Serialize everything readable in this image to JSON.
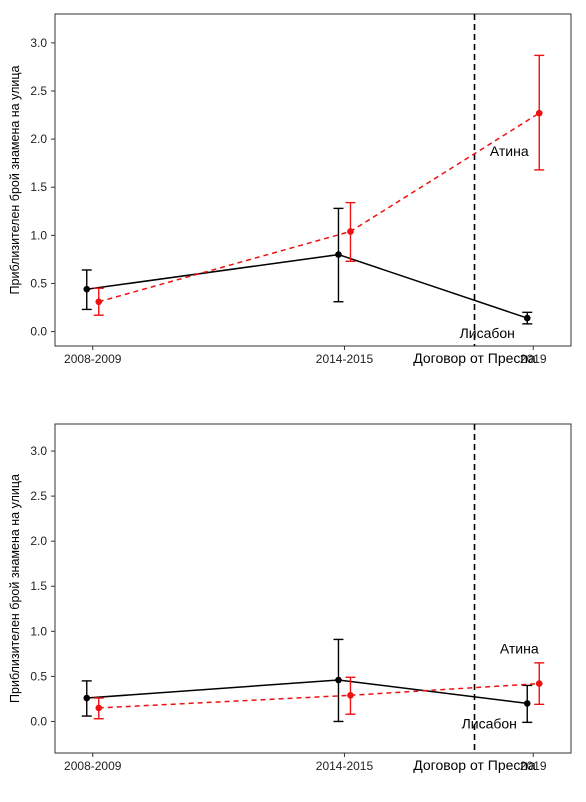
{
  "chart_data": [
    {
      "type": "line",
      "categories": [
        "2008-2009",
        "2014-2015",
        "2019"
      ],
      "x": [
        2008.5,
        2014.5,
        2019
      ],
      "ylabel": "Приблизителен брой знамена на улица",
      "xlabel": "",
      "ylim": [
        -0.15,
        3.3
      ],
      "xlim": [
        2007.6,
        2019.9
      ],
      "yticks": [
        "0.0",
        "0.5",
        "1.0",
        "1.5",
        "2.0",
        "2.5",
        "3.0"
      ],
      "grid": false,
      "event": {
        "x": 2017.6,
        "label": "Договор от Преспа"
      },
      "series": [
        {
          "name": "Лисабон",
          "color": "#000000",
          "linestyle": "solid",
          "values": [
            0.44,
            0.8,
            0.14
          ],
          "lower": [
            0.23,
            0.31,
            0.08
          ],
          "upper": [
            0.64,
            1.28,
            0.2
          ]
        },
        {
          "name": "Атина",
          "color": "#ee1111",
          "linestyle": "dashed",
          "values": [
            0.31,
            1.04,
            2.27
          ],
          "lower": [
            0.17,
            0.73,
            1.68
          ],
          "upper": [
            0.45,
            1.34,
            2.87
          ]
        }
      ]
    },
    {
      "type": "line",
      "categories": [
        "2008-2009",
        "2014-2015",
        "2019"
      ],
      "x": [
        2008.5,
        2014.5,
        2019
      ],
      "ylabel": "Приблизителен брой знамена на улица",
      "xlabel": "",
      "ylim": [
        -0.35,
        3.3
      ],
      "xlim": [
        2007.6,
        2019.9
      ],
      "yticks": [
        "0.0",
        "0.5",
        "1.0",
        "1.5",
        "2.0",
        "2.5",
        "3.0"
      ],
      "grid": false,
      "event": {
        "x": 2017.6,
        "label": "Договор от Преспа"
      },
      "series": [
        {
          "name": "Лисабон",
          "color": "#000000",
          "linestyle": "solid",
          "values": [
            0.26,
            0.46,
            0.2
          ],
          "lower": [
            0.06,
            0.0,
            -0.01
          ],
          "upper": [
            0.45,
            0.91,
            0.4
          ]
        },
        {
          "name": "Атина",
          "color": "#ee1111",
          "linestyle": "dashed",
          "values": [
            0.15,
            0.29,
            0.42
          ],
          "lower": [
            0.03,
            0.08,
            0.19
          ],
          "upper": [
            0.26,
            0.49,
            0.65
          ]
        }
      ]
    }
  ]
}
